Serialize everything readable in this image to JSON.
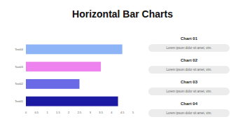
{
  "chart_data": {
    "type": "bar",
    "title": "Horizontal Bar Charts",
    "orientation": "horizontal",
    "categories": [
      "Text01",
      "Text02",
      "Text03",
      "Text04"
    ],
    "values": [
      4.3,
      2.5,
      3.5,
      4.5
    ],
    "colors": [
      "#1c1aa3",
      "#6a6ae6",
      "#ee82ee",
      "#8cb4f7"
    ],
    "xlim": [
      0,
      5
    ],
    "xticks": [
      0,
      0.5,
      1,
      1.5,
      2,
      2.5,
      3,
      3.5,
      4,
      4.5,
      5
    ],
    "grid": false
  },
  "cards": [
    {
      "title": "Chart 01",
      "text": "Lorem ipsum dolor sit amet, vim."
    },
    {
      "title": "Chart 02",
      "text": "Lorem ipsum dolor sit amet, vim."
    },
    {
      "title": "Chart 03",
      "text": "Lorem ipsum dolor sit amet, vim."
    },
    {
      "title": "Chart 04",
      "text": "Lorem ipsum dolor sit amet, vim."
    }
  ]
}
